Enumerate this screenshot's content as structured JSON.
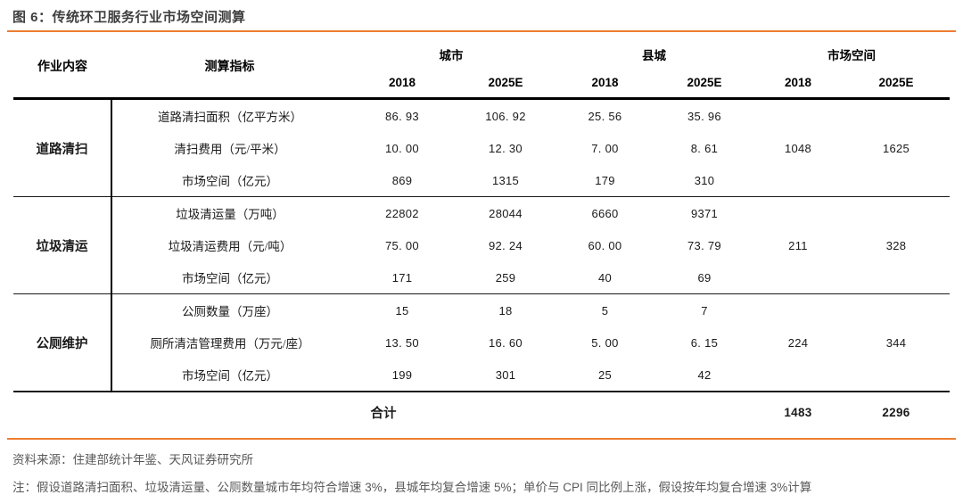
{
  "title": "图 6：传统环卫服务行业市场空间测算",
  "colors": {
    "accent_orange": "#ED7D31",
    "title_gray": "#3F3F3F",
    "footer_gray": "#595959",
    "table_text": "#1A1A1A"
  },
  "table": {
    "header": {
      "col_job": "作业内容",
      "col_indicator": "测算指标",
      "group_city": "城市",
      "group_county": "县城",
      "group_market": "市场空间",
      "sub_2018": "2018",
      "sub_2025": "2025E"
    },
    "sections": [
      {
        "job": "道路清扫",
        "market_2018": "1048",
        "market_2025": "1625",
        "rows": [
          {
            "indicator": "道路清扫面积（亿平方米）",
            "city_2018": "86. 93",
            "city_2025": "106. 92",
            "county_2018": "25. 56",
            "county_2025": "35. 96"
          },
          {
            "indicator": "清扫费用（元/平米）",
            "city_2018": "10. 00",
            "city_2025": "12. 30",
            "county_2018": "7. 00",
            "county_2025": "8. 61"
          },
          {
            "indicator": "市场空间（亿元）",
            "city_2018": "869",
            "city_2025": "1315",
            "county_2018": "179",
            "county_2025": "310"
          }
        ]
      },
      {
        "job": "垃圾清运",
        "market_2018": "211",
        "market_2025": "328",
        "rows": [
          {
            "indicator": "垃圾清运量（万吨）",
            "city_2018": "22802",
            "city_2025": "28044",
            "county_2018": "6660",
            "county_2025": "9371"
          },
          {
            "indicator": "垃圾清运费用（元/吨）",
            "city_2018": "75. 00",
            "city_2025": "92. 24",
            "county_2018": "60. 00",
            "county_2025": "73. 79"
          },
          {
            "indicator": "市场空间（亿元）",
            "city_2018": "171",
            "city_2025": "259",
            "county_2018": "40",
            "county_2025": "69"
          }
        ]
      },
      {
        "job": "公厕维护",
        "market_2018": "224",
        "market_2025": "344",
        "rows": [
          {
            "indicator": "公厕数量（万座）",
            "city_2018": "15",
            "city_2025": "18",
            "county_2018": "5",
            "county_2025": "7"
          },
          {
            "indicator": "厕所清洁管理费用（万元/座）",
            "city_2018": "13. 50",
            "city_2025": "16. 60",
            "county_2018": "5. 00",
            "county_2025": "6. 15"
          },
          {
            "indicator": "市场空间（亿元）",
            "city_2018": "199",
            "city_2025": "301",
            "county_2018": "25",
            "county_2025": "42"
          }
        ]
      }
    ],
    "total": {
      "label": "合计",
      "market_2018": "1483",
      "market_2025": "2296"
    }
  },
  "footer": {
    "source": "资料来源：住建部统计年鉴、天风证券研究所",
    "note": "注：假设道路清扫面积、垃圾清运量、公厕数量城市年均符合增速 3%，县城年均复合增速 5%；单价与 CPI 同比例上涨，假设按年均复合增速 3%计算"
  }
}
